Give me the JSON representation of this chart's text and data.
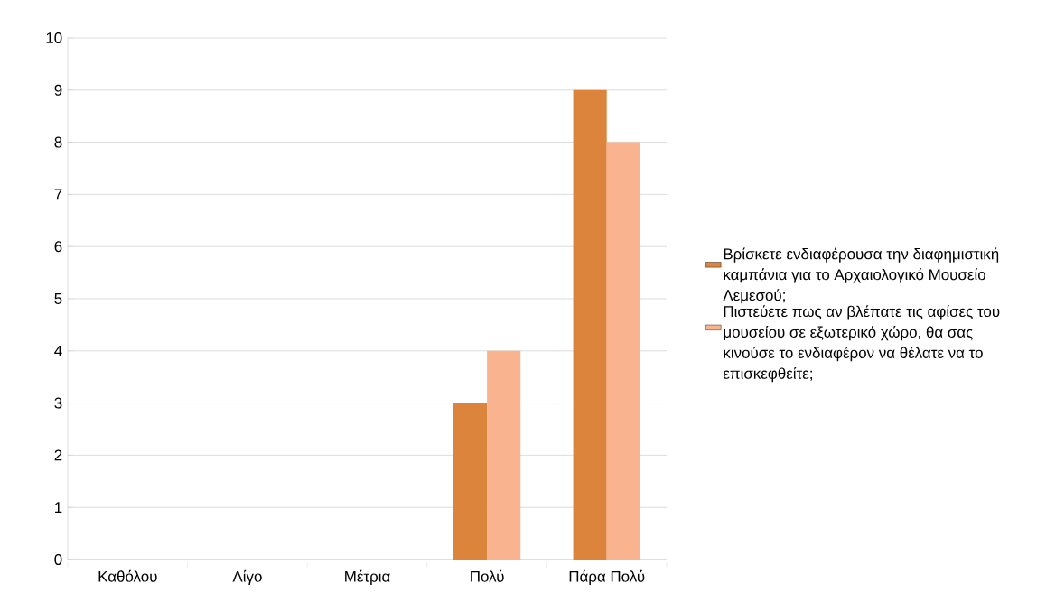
{
  "chart_data": {
    "type": "bar",
    "categories": [
      "Καθόλου",
      "Λίγο",
      "Μέτρια",
      "Πολύ",
      "Πάρα Πολύ"
    ],
    "series": [
      {
        "name": "Βρίσκετε ενδιαφέρουσα την διαφημιστική καμπάνια για το Αρχαιολογικό Μουσείο Λεμεσού;",
        "color": "#dd843c",
        "values": [
          0,
          0,
          0,
          3,
          9
        ]
      },
      {
        "name": "Πιστεύετε πως αν βλέπατε τις αφίσες του μουσείου σε εξωτερικό χώρο, θα σας κινούσε το ενδιαφέρον να θέλατε να το επισκεφθείτε;",
        "color": "#f9b48f",
        "values": [
          0,
          0,
          0,
          4,
          8
        ]
      }
    ],
    "ylim": [
      0,
      10
    ],
    "yticks": [
      0,
      1,
      2,
      3,
      4,
      5,
      6,
      7,
      8,
      9,
      10
    ],
    "grid": "y",
    "legend": "right"
  }
}
